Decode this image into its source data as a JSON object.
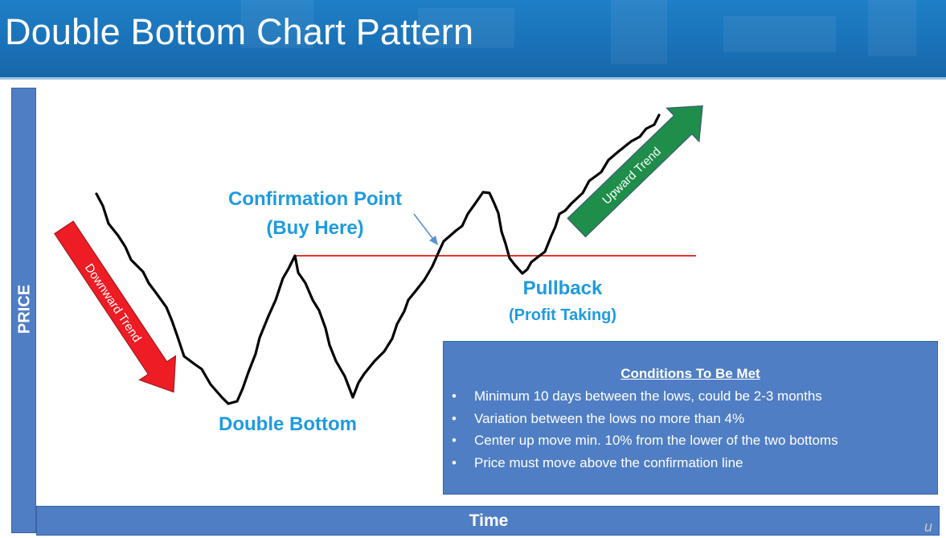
{
  "header": {
    "title": "Double Bottom Chart Pattern"
  },
  "axes": {
    "y_label": "PRICE",
    "x_label": "Time"
  },
  "labels": {
    "confirmation_point": "Confirmation Point",
    "buy_here": "(Buy Here)",
    "double_bottom": "Double Bottom",
    "pullback": "Pullback",
    "profit_taking": "(Profit Taking)"
  },
  "arrows": {
    "downward": {
      "label": "Downward Trend",
      "color": "#ee1c24"
    },
    "upward": {
      "label": "Upward Trend",
      "color": "#1e8e4a"
    }
  },
  "confirmation_line_color": "#e8362c",
  "price_line_color": "#000000",
  "conditions": {
    "title": "Conditions To Be Met",
    "bullet": "•",
    "items": [
      "Minimum 10 days between the lows, could be 2-3 months",
      "Variation between the lows no more than 4%",
      "Center up move min. 10% from the lower of the two bottoms",
      "Price must move above the confirmation line"
    ]
  },
  "watermark": "u"
}
